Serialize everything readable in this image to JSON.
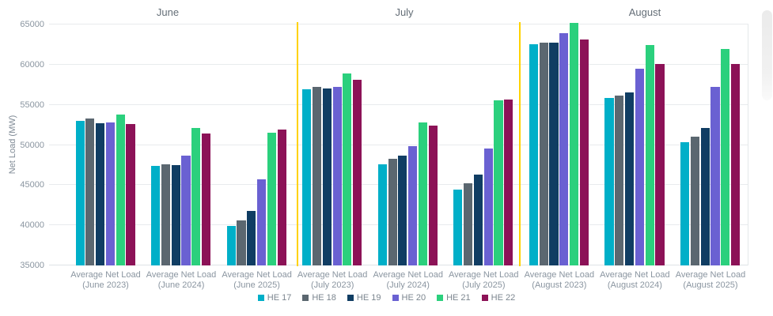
{
  "chart_data": {
    "type": "bar",
    "title": "",
    "ylabel": "Net Load (MW)",
    "ylim": [
      35000,
      65000
    ],
    "yticks": [
      35000,
      40000,
      45000,
      50000,
      55000,
      60000,
      65000
    ],
    "grid": true,
    "legend_position": "bottom",
    "divider_color": "#FFD200",
    "grid_color": "#E8EBED",
    "series": [
      {
        "name": "HE 17",
        "color": "#00AFC8"
      },
      {
        "name": "HE 18",
        "color": "#5B6770"
      },
      {
        "name": "HE 19",
        "color": "#103D63"
      },
      {
        "name": "HE 20",
        "color": "#6A61D2"
      },
      {
        "name": "HE 21",
        "color": "#2BD07D"
      },
      {
        "name": "HE 22",
        "color": "#8C1257"
      }
    ],
    "months": [
      {
        "label": "June",
        "clusters": [
          {
            "line1": "Average Net Load",
            "line2": "(June 2023)",
            "values": [
              53050,
              53300,
              52750,
              52800,
              53750,
              52650
            ]
          },
          {
            "line1": "Average Net Load",
            "line2": "(June 2024)",
            "values": [
              47400,
              47600,
              47500,
              48700,
              52150,
              51450
            ]
          },
          {
            "line1": "Average Net Load",
            "line2": "(June 2025)",
            "values": [
              39950,
              40600,
              41800,
              45750,
              51500,
              51950
            ]
          }
        ]
      },
      {
        "label": "July",
        "clusters": [
          {
            "line1": "Average Net Load",
            "line2": "(July 2023)",
            "values": [
              56900,
              57250,
              57000,
              57250,
              58900,
              58100
            ]
          },
          {
            "line1": "Average Net Load",
            "line2": "(July 2024)",
            "values": [
              47600,
              48300,
              48700,
              49900,
              52850,
              52400
            ]
          },
          {
            "line1": "Average Net Load",
            "line2": "(July 2025)",
            "values": [
              44450,
              45200,
              46300,
              49600,
              55600,
              55700
            ]
          }
        ]
      },
      {
        "label": "August",
        "clusters": [
          {
            "line1": "Average Net Load",
            "line2": "(August 2023)",
            "values": [
              62500,
              62700,
              62700,
              63950,
              65200,
              63100
            ]
          },
          {
            "line1": "Average Net Load",
            "line2": "(August 2024)",
            "values": [
              55900,
              56100,
              56500,
              59450,
              62400,
              60050
            ]
          },
          {
            "line1": "Average Net Load",
            "line2": "(August 2025)",
            "values": [
              50300,
              51000,
              52100,
              57200,
              61950,
              60050
            ]
          }
        ]
      }
    ]
  }
}
